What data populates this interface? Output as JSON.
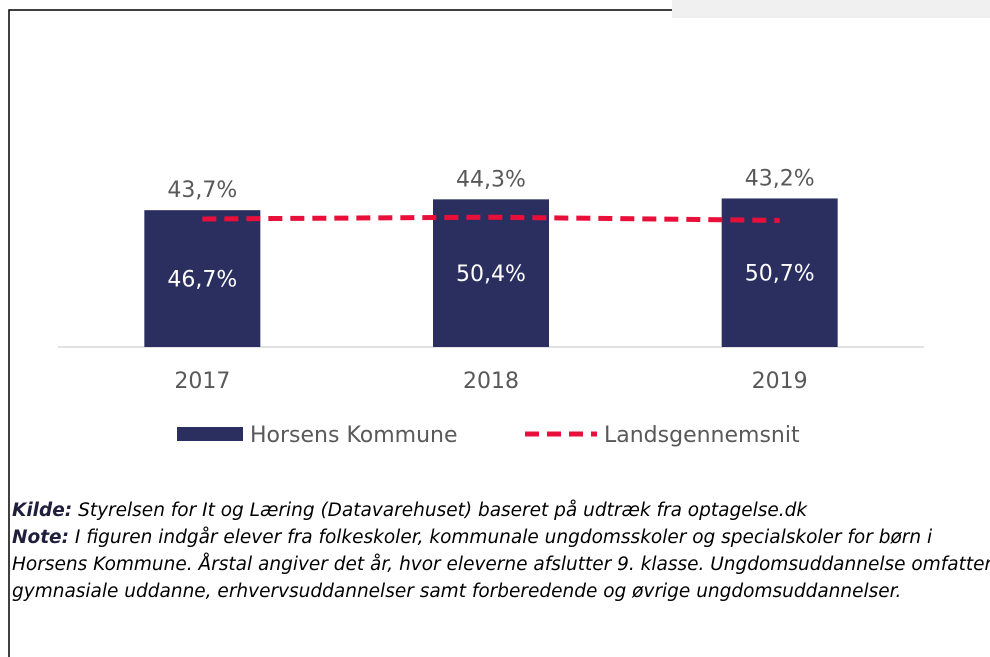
{
  "chart_data": {
    "type": "bar-line",
    "categories": [
      "2017",
      "2018",
      "2019"
    ],
    "series": [
      {
        "name": "Horsens Kommune",
        "type": "bar",
        "color": "#2b2f60",
        "values": [
          46.7,
          50.4,
          50.7
        ],
        "value_labels": [
          "46,7%",
          "50,4%",
          "50,7%"
        ]
      },
      {
        "name": "Landsgennemsnit",
        "type": "line",
        "color": "#e8103a",
        "values": [
          43.7,
          44.3,
          43.2
        ],
        "value_labels": [
          "43,7%",
          "44,3%",
          "43,2%"
        ]
      }
    ],
    "ylim": [
      0,
      100
    ]
  },
  "notes": [
    {
      "label": "Kilde:",
      "text": " Styrelsen for It og Læring (Datavarehuset) baseret på udtræk fra optagelse.dk"
    },
    {
      "label": "Note:",
      "text": " I figuren indgår elever fra folkeskoler, kommunale ungdomsskoler og specialskoler for børn i Horsens Kommune. Årstal angiver det år, hvor eleverne afslutter 9. klasse. Ungdomsuddannelse omfatter gymnasiale uddanne, erhvervsuddannelser samt forberedende og øvrige ungdomsuddannelser."
    }
  ]
}
